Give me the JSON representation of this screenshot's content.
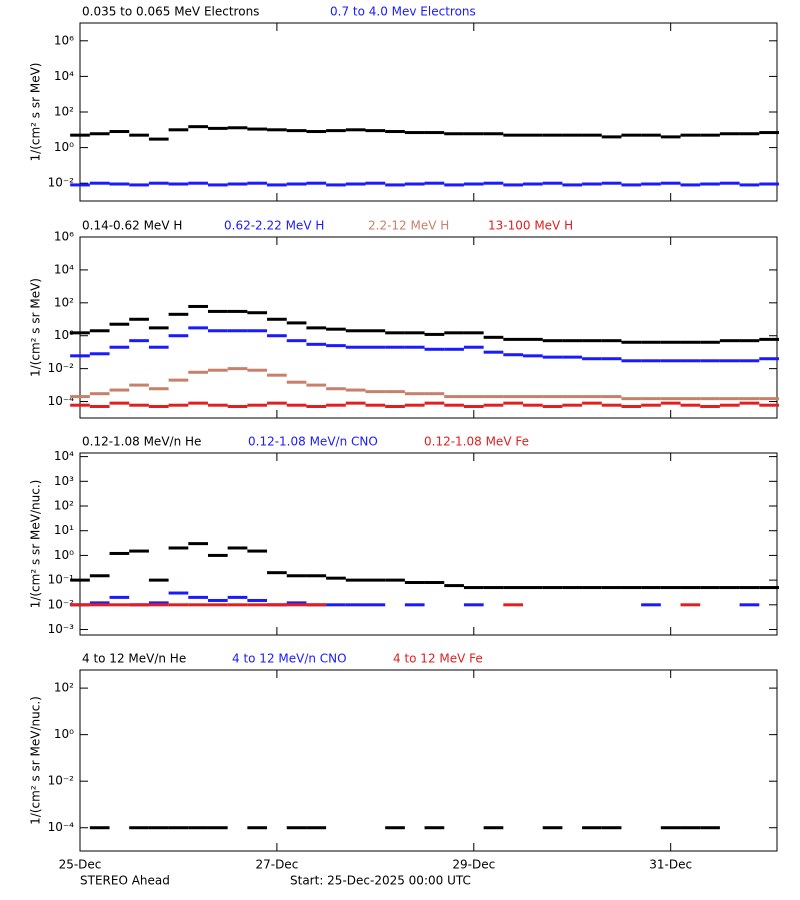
{
  "chart_data": [
    {
      "type": "scatter",
      "log_y": true,
      "ylabel": "1/(cm² s sr MeV)",
      "xlim": [
        0,
        7.08
      ],
      "xticks": [
        0,
        2,
        4,
        6
      ],
      "ylim": [
        0.001,
        10000000
      ],
      "yticks": [
        {
          "value": 0.01,
          "label": "10⁻²"
        },
        {
          "value": 1,
          "label": "10⁰"
        },
        {
          "value": 100,
          "label": "10²"
        },
        {
          "value": 10000,
          "label": "10⁴"
        },
        {
          "value": 1000000,
          "label": "10⁶"
        }
      ],
      "x": [
        0,
        0.2,
        0.4,
        0.6,
        0.8,
        1,
        1.2,
        1.4,
        1.6,
        1.8,
        2,
        2.2,
        2.4,
        2.6,
        2.8,
        3,
        3.2,
        3.4,
        3.6,
        3.8,
        4,
        4.2,
        4.4,
        4.6,
        4.8,
        5,
        5.2,
        5.4,
        5.6,
        5.8,
        6,
        6.2,
        6.4,
        6.6,
        6.8,
        7
      ],
      "series": [
        {
          "name": "0.035 to 0.065 MeV Electrons",
          "color": "#000000",
          "values": [
            5,
            6,
            8,
            5,
            3,
            10,
            15,
            12,
            13,
            11,
            10,
            9,
            8,
            9,
            10,
            9,
            8,
            7,
            7,
            6,
            6,
            6,
            5,
            5,
            5,
            5,
            5,
            4,
            5,
            5,
            4,
            5,
            5,
            6,
            6,
            7
          ]
        },
        {
          "name": "0.7 to 4.0 Mev Electrons",
          "color": "#1a1aff",
          "values": [
            0.008,
            0.01,
            0.009,
            0.008,
            0.01,
            0.009,
            0.01,
            0.008,
            0.009,
            0.01,
            0.008,
            0.009,
            0.01,
            0.008,
            0.009,
            0.01,
            0.008,
            0.009,
            0.01,
            0.008,
            0.009,
            0.01,
            0.008,
            0.009,
            0.01,
            0.008,
            0.009,
            0.01,
            0.008,
            0.009,
            0.01,
            0.008,
            0.009,
            0.01,
            0.008,
            0.009
          ]
        }
      ]
    },
    {
      "type": "scatter",
      "log_y": true,
      "ylabel": "1/(cm² s sr MeV)",
      "xlim": [
        0,
        7.08
      ],
      "xticks": [
        0,
        2,
        4,
        6
      ],
      "ylim": [
        1e-05,
        1000000
      ],
      "yticks": [
        {
          "value": 0.0001,
          "label": "10⁻⁴"
        },
        {
          "value": 0.01,
          "label": "10⁻²"
        },
        {
          "value": 1,
          "label": "10⁰"
        },
        {
          "value": 100,
          "label": "10²"
        },
        {
          "value": 10000,
          "label": "10⁴"
        },
        {
          "value": 1000000,
          "label": "10⁶"
        }
      ],
      "x": [
        0,
        0.2,
        0.4,
        0.6,
        0.8,
        1,
        1.2,
        1.4,
        1.6,
        1.8,
        2,
        2.2,
        2.4,
        2.6,
        2.8,
        3,
        3.2,
        3.4,
        3.6,
        3.8,
        4,
        4.2,
        4.4,
        4.6,
        4.8,
        5,
        5.2,
        5.4,
        5.6,
        5.8,
        6,
        6.2,
        6.4,
        6.6,
        6.8,
        7
      ],
      "series": [
        {
          "name": "0.14-0.62 MeV H",
          "color": "#000000",
          "values": [
            1.5,
            2,
            5,
            10,
            3,
            20,
            60,
            30,
            30,
            25,
            10,
            6,
            3,
            2.5,
            2,
            2,
            1.5,
            1.5,
            1.2,
            1.5,
            1.5,
            0.8,
            0.6,
            0.6,
            0.5,
            0.5,
            0.5,
            0.5,
            0.4,
            0.4,
            0.4,
            0.4,
            0.4,
            0.5,
            0.5,
            0.6
          ]
        },
        {
          "name": "0.62-2.22 MeV H",
          "color": "#1a1aff",
          "values": [
            0.06,
            0.08,
            0.2,
            0.5,
            0.2,
            1,
            3,
            2,
            2,
            2,
            1,
            0.5,
            0.3,
            0.25,
            0.2,
            0.2,
            0.2,
            0.2,
            0.15,
            0.15,
            0.2,
            0.1,
            0.07,
            0.06,
            0.05,
            0.05,
            0.04,
            0.04,
            0.03,
            0.03,
            0.03,
            0.03,
            0.03,
            0.03,
            0.03,
            0.04
          ]
        },
        {
          "name": "2.2-12 MeV H",
          "color": "#c8806a",
          "values": [
            0.0002,
            0.0003,
            0.0005,
            0.001,
            0.0006,
            0.002,
            0.006,
            0.008,
            0.01,
            0.008,
            0.004,
            0.0015,
            0.001,
            0.0006,
            0.0005,
            0.0004,
            0.0004,
            0.0003,
            0.0003,
            0.0002,
            0.0002,
            0.0002,
            0.0002,
            0.0002,
            0.0002,
            0.0002,
            0.0002,
            0.0002,
            0.00015,
            0.00015,
            0.00015,
            0.00015,
            0.00015,
            0.00015,
            0.00015,
            0.00015
          ]
        },
        {
          "name": "13-100 MeV H",
          "color": "#e02020",
          "values": [
            6e-05,
            5e-05,
            8e-05,
            6e-05,
            5e-05,
            6e-05,
            8e-05,
            6e-05,
            5e-05,
            6e-05,
            8e-05,
            6e-05,
            5e-05,
            6e-05,
            8e-05,
            6e-05,
            5e-05,
            6e-05,
            8e-05,
            6e-05,
            5e-05,
            6e-05,
            8e-05,
            6e-05,
            5e-05,
            6e-05,
            8e-05,
            6e-05,
            5e-05,
            6e-05,
            8e-05,
            6e-05,
            5e-05,
            6e-05,
            8e-05,
            6e-05
          ]
        }
      ]
    },
    {
      "type": "scatter",
      "log_y": true,
      "ylabel": "1/(cm² s sr MeV/nuc.)",
      "xlim": [
        0,
        7.08
      ],
      "xticks": [
        0,
        2,
        4,
        6
      ],
      "ylim": [
        0.0006,
        14000
      ],
      "yticks": [
        {
          "value": 0.001,
          "label": "10⁻³"
        },
        {
          "value": 0.01,
          "label": "10⁻²"
        },
        {
          "value": 0.1,
          "label": "10⁻¹"
        },
        {
          "value": 1,
          "label": "10⁰"
        },
        {
          "value": 10,
          "label": "10¹"
        },
        {
          "value": 100,
          "label": "10²"
        },
        {
          "value": 1000,
          "label": "10³"
        },
        {
          "value": 10000,
          "label": "10⁴"
        }
      ],
      "x": [
        0,
        0.2,
        0.4,
        0.6,
        0.8,
        1,
        1.2,
        1.4,
        1.6,
        1.8,
        2,
        2.2,
        2.4,
        2.6,
        2.8,
        3,
        3.2,
        3.4,
        3.6,
        3.8,
        4,
        4.2,
        4.4,
        4.6,
        4.8,
        5,
        5.2,
        5.4,
        5.6,
        5.8,
        6,
        6.2,
        6.4,
        6.6,
        6.8,
        7
      ],
      "series": [
        {
          "name": "0.12-1.08 MeV/n He",
          "color": "#000000",
          "values": [
            0.1,
            0.15,
            1.2,
            1.5,
            0.1,
            2,
            3,
            1,
            2,
            1.5,
            0.2,
            0.15,
            0.15,
            0.12,
            0.1,
            0.1,
            0.1,
            0.08,
            0.08,
            0.06,
            0.05,
            0.05,
            0.05,
            0.05,
            0.05,
            0.05,
            0.05,
            0.05,
            0.05,
            0.05,
            0.05,
            0.05,
            0.05,
            0.05,
            0.05,
            0.05
          ]
        },
        {
          "name": "0.12-1.08 MeV/n CNO",
          "color": "#1a1aff",
          "values": [
            0.01,
            0.012,
            0.02,
            0.01,
            0.012,
            0.03,
            0.02,
            0.015,
            0.02,
            0.015,
            0.01,
            0.012,
            0.01,
            0.01,
            0.01,
            0.01,
            null,
            0.01,
            null,
            null,
            0.01,
            null,
            null,
            null,
            null,
            null,
            null,
            null,
            null,
            0.01,
            null,
            null,
            null,
            null,
            0.01,
            null
          ]
        },
        {
          "name": "0.12-1.08 MeV Fe",
          "color": "#e02020",
          "values": [
            0.01,
            0.01,
            0.01,
            0.01,
            0.01,
            0.01,
            0.01,
            0.01,
            0.01,
            0.01,
            0.01,
            0.01,
            0.01,
            null,
            null,
            null,
            null,
            null,
            null,
            null,
            null,
            null,
            0.01,
            null,
            null,
            null,
            null,
            null,
            null,
            null,
            null,
            0.01,
            null,
            null,
            null,
            null
          ]
        }
      ]
    },
    {
      "type": "scatter",
      "log_y": true,
      "ylabel": "1/(cm² s sr MeV/nuc.)",
      "xlim": [
        0,
        7.08
      ],
      "xticks": [
        {
          "value": 0,
          "label": "25-Dec"
        },
        {
          "value": 2,
          "label": "27-Dec"
        },
        {
          "value": 4,
          "label": "29-Dec"
        },
        {
          "value": 6,
          "label": "31-Dec"
        }
      ],
      "ylim": [
        1e-05,
        600
      ],
      "yticks": [
        {
          "value": 0.0001,
          "label": "10⁻⁴"
        },
        {
          "value": 0.01,
          "label": "10⁻²"
        },
        {
          "value": 1,
          "label": "10⁰"
        },
        {
          "value": 100,
          "label": "10²"
        }
      ],
      "x": [
        0,
        0.2,
        0.4,
        0.6,
        0.8,
        1,
        1.2,
        1.4,
        1.6,
        1.8,
        2,
        2.2,
        2.4,
        2.6,
        2.8,
        3,
        3.2,
        3.4,
        3.6,
        3.8,
        4,
        4.2,
        4.4,
        4.6,
        4.8,
        5,
        5.2,
        5.4,
        5.6,
        5.8,
        6,
        6.2,
        6.4,
        6.6,
        6.8,
        7
      ],
      "series": [
        {
          "name": "4 to 12 MeV/n He",
          "color": "#000000",
          "values": [
            null,
            0.0001,
            null,
            0.0001,
            0.0001,
            0.0001,
            0.0001,
            0.0001,
            null,
            0.0001,
            null,
            0.0001,
            0.0001,
            null,
            null,
            null,
            0.0001,
            null,
            0.0001,
            null,
            null,
            0.0001,
            null,
            null,
            0.0001,
            null,
            0.0001,
            0.0001,
            null,
            null,
            0.0001,
            0.0001,
            0.0001,
            null,
            null,
            null
          ]
        },
        {
          "name": "4 to 12 MeV/n CNO",
          "color": "#1a1aff",
          "values": [
            null,
            null,
            null,
            null,
            null,
            null,
            null,
            null,
            null,
            null,
            null,
            null,
            null,
            null,
            null,
            null,
            null,
            null,
            null,
            null,
            null,
            null,
            null,
            null,
            null,
            null,
            null,
            null,
            null,
            null,
            null,
            null,
            null,
            null,
            null,
            null
          ]
        },
        {
          "name": "4 to 12 MeV Fe",
          "color": "#e02020",
          "values": [
            null,
            null,
            null,
            null,
            null,
            null,
            null,
            null,
            null,
            null,
            null,
            null,
            null,
            null,
            null,
            null,
            null,
            null,
            null,
            null,
            null,
            null,
            null,
            null,
            null,
            null,
            null,
            null,
            null,
            null,
            null,
            null,
            null,
            null,
            null,
            null
          ]
        }
      ]
    }
  ],
  "footer": {
    "left": "STEREO Ahead",
    "right": "Start: 25-Dec-2025 00:00 UTC"
  }
}
